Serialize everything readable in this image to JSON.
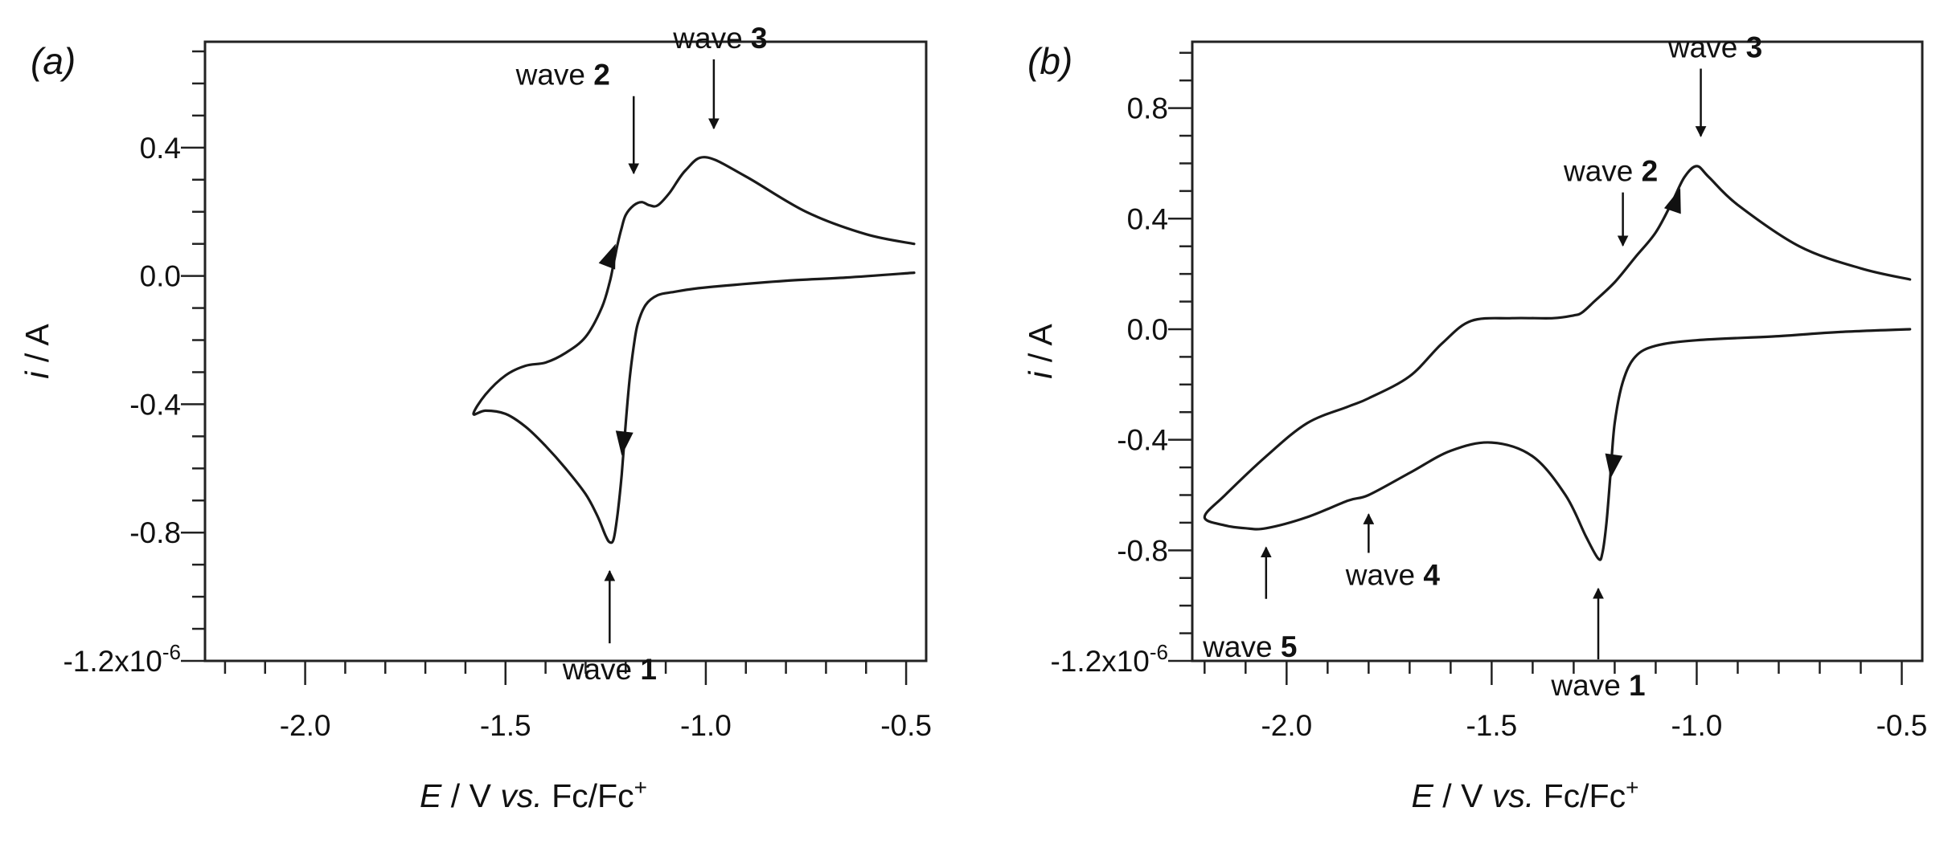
{
  "chart_data": [
    {
      "type": "line",
      "panel_label": "(a)",
      "title": "",
      "xlabel": {
        "italic": "E",
        "rest": " / V ",
        "vs": "vs.",
        "tail": " Fc/Fc",
        "sup": "+"
      },
      "ylabel": {
        "italic": "i",
        "rest": " / A"
      },
      "xlim": [
        -2.25,
        -0.45
      ],
      "ylim": [
        -1.2,
        0.73
      ],
      "xticks": [
        -2.0,
        -1.5,
        -1.0,
        -0.5
      ],
      "xtick_labels": [
        "-2.0",
        "-1.5",
        "-1.0",
        "-0.5"
      ],
      "yticks": [
        0.4,
        0.0,
        -0.4,
        -0.8,
        -1.2
      ],
      "ytick_labels": [
        "0.4",
        "0.0",
        "-0.4",
        "-0.8",
        "-1.2x10"
      ],
      "ytick_exponent": "-6",
      "y_unit_scale": "1e-6 A",
      "series": [
        {
          "name": "cyclic voltammogram (a)",
          "x": [
            -0.48,
            -0.6,
            -0.75,
            -0.9,
            -1.0,
            -1.05,
            -1.09,
            -1.12,
            -1.14,
            -1.16,
            -1.18,
            -1.2,
            -1.21,
            -1.22,
            -1.225,
            -1.23,
            -1.24,
            -1.26,
            -1.3,
            -1.35,
            -1.4,
            -1.45,
            -1.5,
            -1.55,
            -1.58,
            -1.55,
            -1.5,
            -1.45,
            -1.4,
            -1.35,
            -1.3,
            -1.27,
            -1.25,
            -1.24,
            -1.23,
            -1.22,
            -1.21,
            -1.2,
            -1.19,
            -1.18,
            -1.17,
            -1.15,
            -1.12,
            -1.08,
            -1.03,
            -0.95,
            -0.8,
            -0.65,
            -0.48
          ],
          "y": [
            0.1,
            0.13,
            0.2,
            0.31,
            0.37,
            0.33,
            0.26,
            0.22,
            0.22,
            0.23,
            0.22,
            0.19,
            0.15,
            0.1,
            0.07,
            0.04,
            -0.02,
            -0.1,
            -0.19,
            -0.24,
            -0.27,
            -0.28,
            -0.31,
            -0.37,
            -0.43,
            -0.42,
            -0.43,
            -0.47,
            -0.53,
            -0.6,
            -0.68,
            -0.75,
            -0.81,
            -0.83,
            -0.82,
            -0.74,
            -0.62,
            -0.46,
            -0.32,
            -0.22,
            -0.15,
            -0.09,
            -0.06,
            -0.05,
            -0.04,
            -0.03,
            -0.015,
            -0.005,
            0.01
          ]
        }
      ],
      "annotations": [
        {
          "text": "wave ",
          "bold": "2",
          "x": -1.18,
          "y": 0.24,
          "direction": "down"
        },
        {
          "text": "wave ",
          "bold": "3",
          "x": -0.98,
          "y": 0.38,
          "direction": "down"
        },
        {
          "text": "wave ",
          "bold": "1",
          "x": -1.24,
          "y": -0.84,
          "direction": "up"
        }
      ],
      "direction_arrows": [
        {
          "from": [
            -1.25,
            0.02
          ],
          "to": [
            -1.225,
            0.1
          ]
        },
        {
          "from": [
            -1.195,
            -0.4
          ],
          "to": [
            -1.21,
            -0.56
          ]
        }
      ]
    },
    {
      "type": "line",
      "panel_label": "(b)",
      "title": "",
      "xlabel": {
        "italic": "E",
        "rest": " / V ",
        "vs": "vs.",
        "tail": " Fc/Fc",
        "sup": "+"
      },
      "ylabel": {
        "italic": "i",
        "rest": " / A"
      },
      "xlim": [
        -2.23,
        -0.45
      ],
      "ylim": [
        -1.2,
        1.04
      ],
      "xticks": [
        -2.0,
        -1.5,
        -1.0,
        -0.5
      ],
      "xtick_labels": [
        "-2.0",
        "-1.5",
        "-1.0",
        "-0.5"
      ],
      "yticks": [
        0.8,
        0.4,
        0.0,
        -0.4,
        -0.8,
        -1.2
      ],
      "ytick_labels": [
        "0.8",
        "0.4",
        "0.0",
        "-0.4",
        "-0.8",
        "-1.2x10"
      ],
      "ytick_exponent": "-6",
      "y_unit_scale": "1e-6 A",
      "series": [
        {
          "name": "cyclic voltammogram (b)",
          "x": [
            -0.48,
            -0.6,
            -0.75,
            -0.9,
            -0.97,
            -1.0,
            -1.03,
            -1.06,
            -1.1,
            -1.15,
            -1.2,
            -1.25,
            -1.28,
            -1.3,
            -1.35,
            -1.45,
            -1.55,
            -1.62,
            -1.7,
            -1.8,
            -1.85,
            -1.95,
            -2.05,
            -2.15,
            -2.2,
            -2.15,
            -2.1,
            -2.05,
            -1.95,
            -1.85,
            -1.8,
            -1.7,
            -1.6,
            -1.5,
            -1.4,
            -1.32,
            -1.27,
            -1.24,
            -1.23,
            -1.22,
            -1.21,
            -1.2,
            -1.18,
            -1.15,
            -1.1,
            -1.0,
            -0.8,
            -0.65,
            -0.48
          ],
          "y": [
            0.18,
            0.22,
            0.3,
            0.45,
            0.55,
            0.59,
            0.55,
            0.46,
            0.35,
            0.26,
            0.17,
            0.1,
            0.06,
            0.05,
            0.04,
            0.04,
            0.03,
            -0.05,
            -0.17,
            -0.25,
            -0.28,
            -0.34,
            -0.46,
            -0.6,
            -0.68,
            -0.71,
            -0.72,
            -0.72,
            -0.68,
            -0.62,
            -0.6,
            -0.52,
            -0.44,
            -0.41,
            -0.46,
            -0.6,
            -0.75,
            -0.83,
            -0.81,
            -0.7,
            -0.52,
            -0.34,
            -0.19,
            -0.1,
            -0.06,
            -0.04,
            -0.025,
            -0.01,
            0.0
          ]
        }
      ],
      "annotations": [
        {
          "text": "wave ",
          "bold": "2",
          "x": -1.18,
          "y": 0.21,
          "direction": "down"
        },
        {
          "text": "wave ",
          "bold": "3",
          "x": -0.99,
          "y": 0.6,
          "direction": "down"
        },
        {
          "text": "wave ",
          "bold": "1",
          "x": -1.24,
          "y": -0.84,
          "direction": "up"
        },
        {
          "text": "wave ",
          "bold": "4",
          "x": -1.8,
          "y": -0.6,
          "direction": "up"
        },
        {
          "text": "wave ",
          "bold": "5",
          "x": -2.05,
          "y": -0.72,
          "direction": "up"
        }
      ],
      "direction_arrows": [
        {
          "from": [
            -1.07,
            0.38
          ],
          "to": [
            -1.04,
            0.51
          ]
        },
        {
          "from": [
            -1.195,
            -0.38
          ],
          "to": [
            -1.21,
            -0.54
          ]
        }
      ]
    }
  ]
}
